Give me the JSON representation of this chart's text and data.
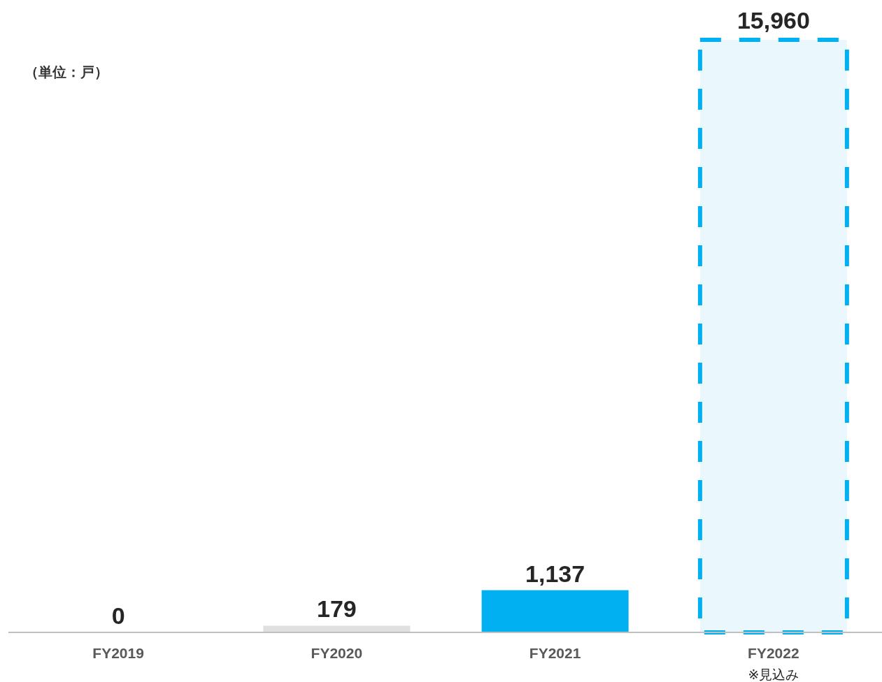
{
  "chart_data": {
    "type": "bar",
    "ylabel": "（単位：戸）",
    "categories": [
      "FY2019",
      "FY2020",
      "FY2021",
      "FY2022"
    ],
    "values": [
      0,
      179,
      1137,
      15960
    ],
    "colors": [
      "#d9d9d9",
      "#e0e0e0",
      "#00b0f0",
      "#eaf7fd"
    ],
    "value_labels": [
      "0",
      "179",
      "1,137",
      "15,960"
    ],
    "annotations": [
      "※見込み"
    ]
  }
}
